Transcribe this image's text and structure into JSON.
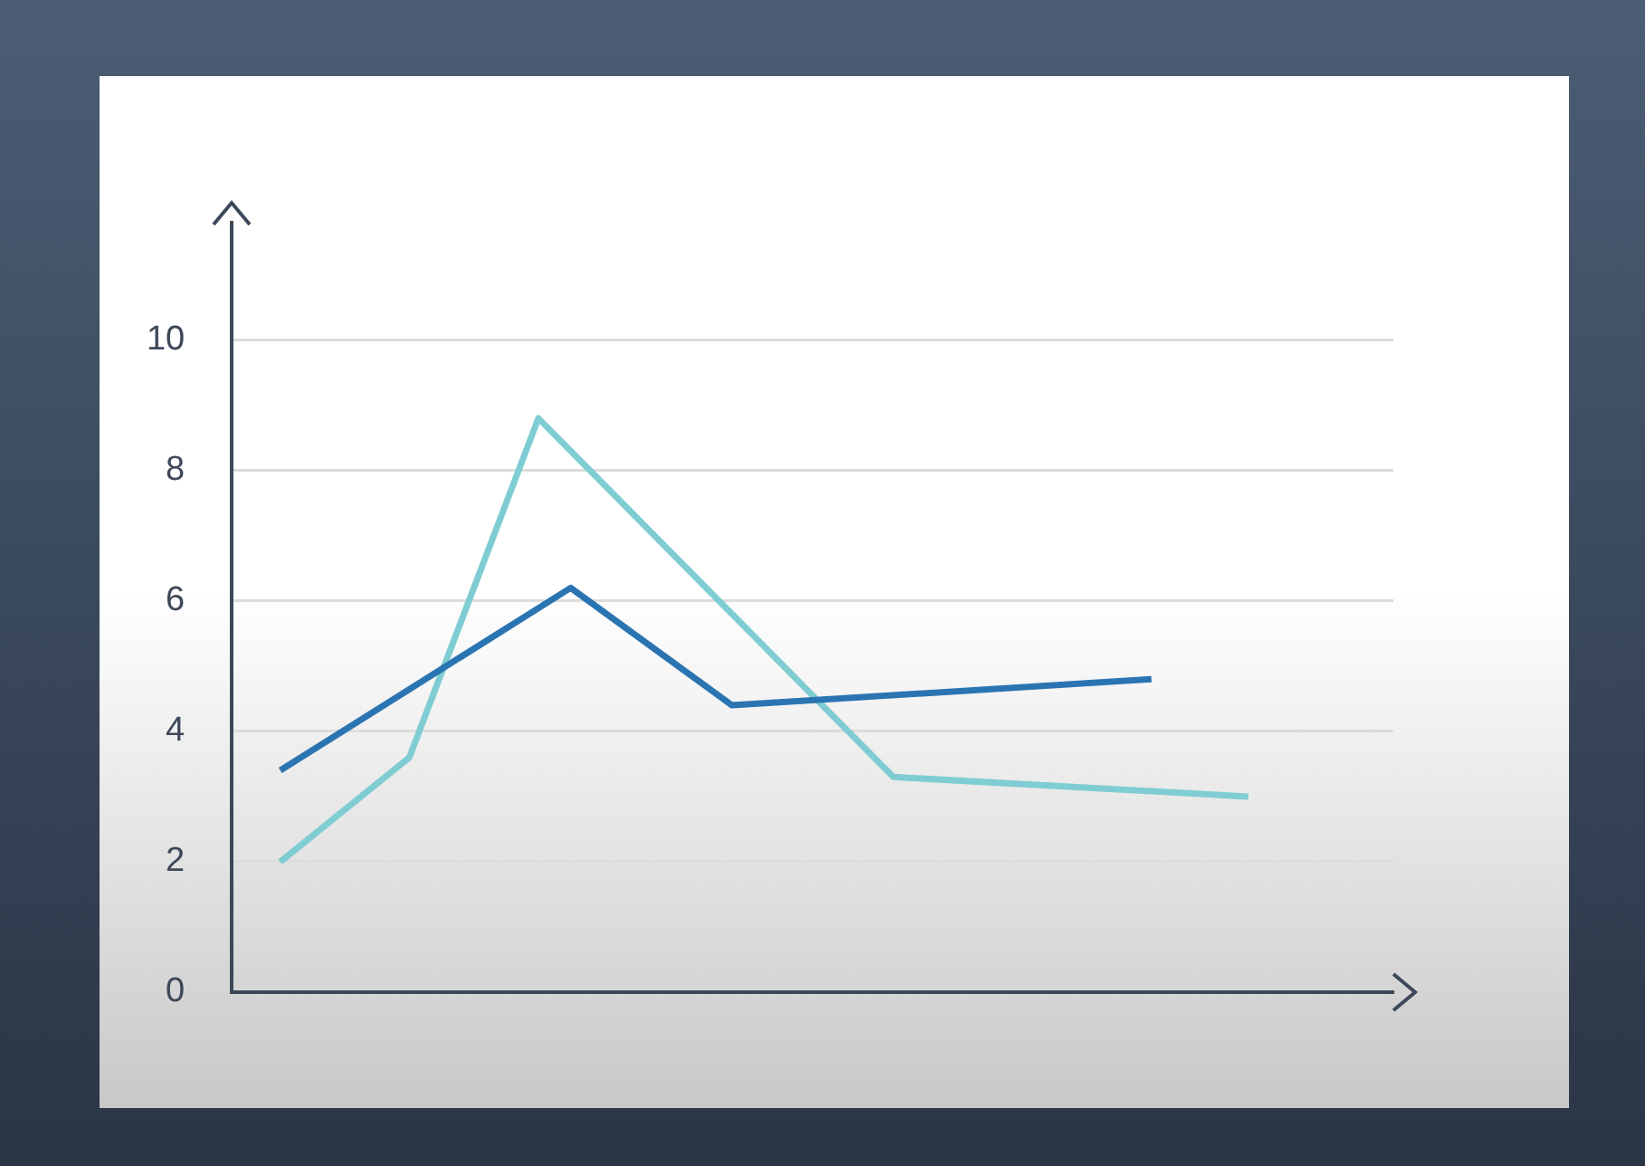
{
  "chart_data": {
    "type": "line",
    "categories": [
      null,
      null,
      null,
      null,
      null,
      null,
      null,
      null,
      null,
      null,
      null,
      null,
      null,
      null,
      null,
      null,
      null,
      null,
      null,
      null,
      null,
      null,
      null,
      null,
      null,
      null,
      null,
      null,
      null,
      null,
      null,
      null,
      null,
      null,
      null,
      null
    ],
    "series": [
      {
        "color": "#2b74b2",
        "values": [
          null,
          3.4,
          null,
          null,
          null,
          null,
          null,
          null,
          null,
          null,
          6.2,
          null,
          null,
          null,
          null,
          4.4,
          null,
          null,
          null,
          null,
          null,
          null,
          null,
          null,
          null,
          null,
          null,
          null,
          4.8,
          null,
          null,
          null,
          null,
          null,
          null,
          null
        ]
      },
      {
        "color": "#7fcdd2",
        "values": [
          null,
          2.0,
          null,
          null,
          null,
          3.6,
          null,
          null,
          null,
          8.8,
          null,
          null,
          null,
          null,
          null,
          null,
          null,
          null,
          null,
          null,
          3.3,
          null,
          null,
          null,
          null,
          null,
          null,
          null,
          null,
          null,
          null,
          3.0,
          null,
          null,
          null,
          null
        ]
      }
    ],
    "ylim": [
      0,
      11.8
    ],
    "yticks": [
      0,
      2,
      4,
      6,
      8,
      10
    ],
    "grid": "y",
    "tick_labels": "y",
    "marker": "none",
    "line_style": "solid"
  }
}
